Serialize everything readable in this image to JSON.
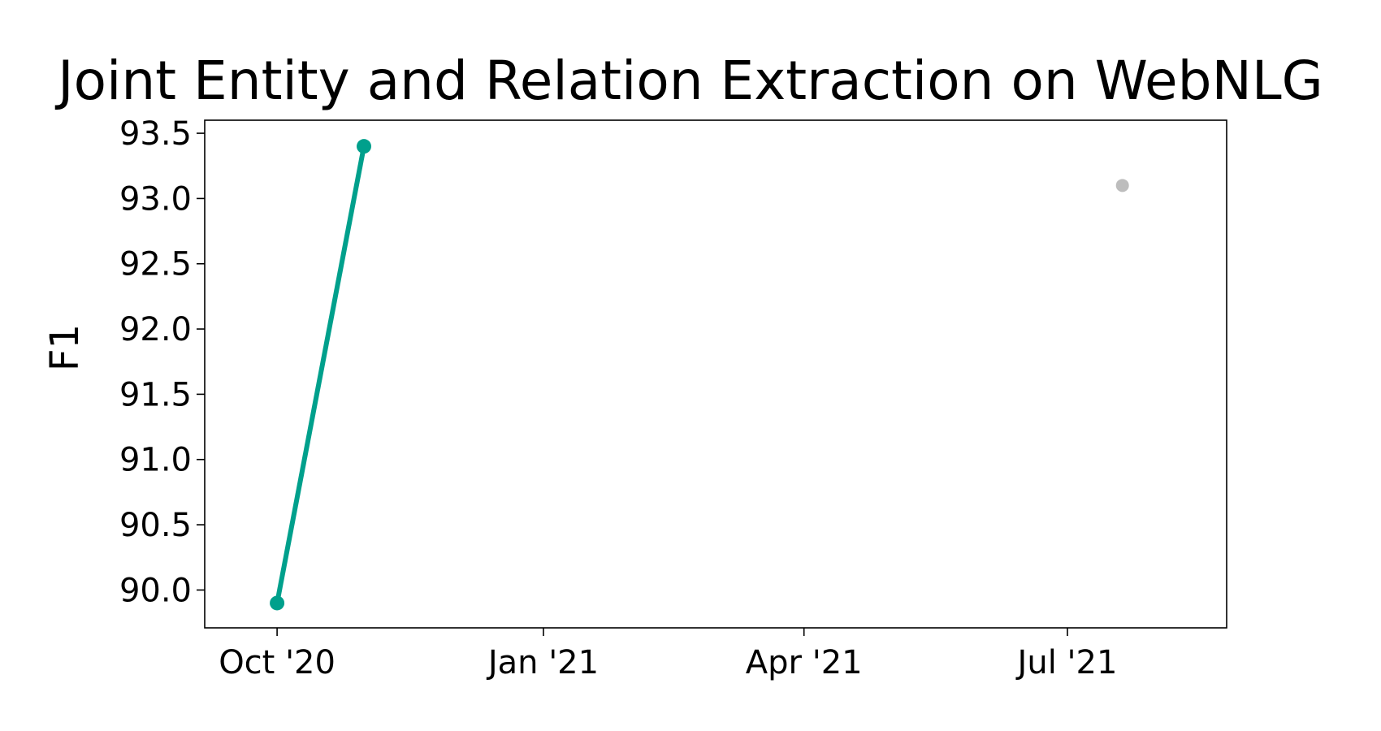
{
  "chart_data": {
    "type": "line",
    "title": "Joint Entity and Relation Extraction on WebNLG",
    "xlabel": "",
    "ylabel": "F1",
    "x_ticks": [
      {
        "date": "2020-10-01",
        "label": "Oct '20"
      },
      {
        "date": "2021-01-01",
        "label": "Jan '21"
      },
      {
        "date": "2021-04-01",
        "label": "Apr '21"
      },
      {
        "date": "2021-07-01",
        "label": "Jul '21"
      }
    ],
    "xlim": [
      "2020-09-06",
      "2021-08-25"
    ],
    "y_ticks": [
      {
        "value": 90.0,
        "label": "90.0"
      },
      {
        "value": 90.5,
        "label": "90.5"
      },
      {
        "value": 91.0,
        "label": "91.0"
      },
      {
        "value": 91.5,
        "label": "91.5"
      },
      {
        "value": 92.0,
        "label": "92.0"
      },
      {
        "value": 92.5,
        "label": "92.5"
      },
      {
        "value": 93.0,
        "label": "93.0"
      },
      {
        "value": 93.5,
        "label": "93.5"
      }
    ],
    "ylim": [
      89.71,
      93.6
    ],
    "grid": false,
    "series": [
      {
        "color": "#00a08c",
        "points": [
          {
            "x": "2020-10-01",
            "y": 89.9
          },
          {
            "x": "2020-10-31",
            "y": 93.4
          }
        ]
      },
      {
        "color": "#bdbdbd",
        "points": [
          {
            "x": "2021-07-20",
            "y": 93.1
          }
        ]
      }
    ]
  }
}
